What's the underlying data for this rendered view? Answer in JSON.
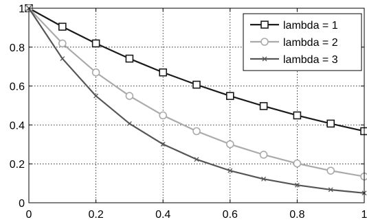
{
  "chart_data": {
    "type": "line",
    "title": "",
    "xlabel": "",
    "ylabel": "",
    "xlim": [
      0,
      1
    ],
    "ylim": [
      0,
      1
    ],
    "grid": true,
    "legend_position": "top-right",
    "x_ticks": [
      0,
      0.2,
      0.4,
      0.6,
      0.8,
      1
    ],
    "x_tick_labels": [
      "0",
      "0.2",
      "0.4",
      "0.6",
      "0.8",
      "1"
    ],
    "y_ticks": [
      0,
      0.2,
      0.4,
      0.6,
      0.8,
      1
    ],
    "y_tick_labels": [
      "0",
      "0.2",
      "0.4",
      "0.6",
      "0.8",
      "1"
    ],
    "x": [
      0,
      0.1,
      0.2,
      0.3,
      0.4,
      0.5,
      0.6,
      0.7,
      0.8,
      0.9,
      1.0
    ],
    "series": [
      {
        "name": "lambda = 1",
        "color": "#1a1a1a",
        "marker": "square",
        "values": [
          1.0,
          0.905,
          0.819,
          0.741,
          0.67,
          0.607,
          0.549,
          0.497,
          0.449,
          0.407,
          0.368
        ]
      },
      {
        "name": "lambda = 2",
        "color": "#aaaaaa",
        "marker": "circle",
        "values": [
          1.0,
          0.819,
          0.67,
          0.549,
          0.449,
          0.368,
          0.301,
          0.247,
          0.202,
          0.165,
          0.135
        ]
      },
      {
        "name": "lambda = 3",
        "color": "#555555",
        "marker": "x",
        "values": [
          1.0,
          0.741,
          0.549,
          0.407,
          0.301,
          0.223,
          0.165,
          0.122,
          0.091,
          0.067,
          0.05
        ]
      }
    ]
  }
}
